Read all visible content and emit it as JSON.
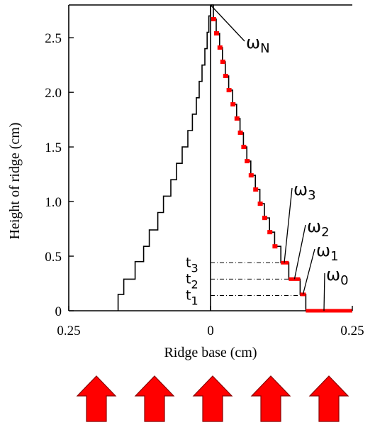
{
  "chart_data": {
    "type": "line",
    "title": "",
    "xlabel": "Ridge base (cm)",
    "ylabel": "Height of ridge (cm)",
    "xlim": [
      -0.25,
      0.25
    ],
    "ylim": [
      0,
      2.8
    ],
    "x_tick_labels": [
      "0.25",
      "0",
      "0.25"
    ],
    "x_tick_values": [
      -0.25,
      0,
      0.25
    ],
    "y_tick_labels": [
      "0",
      "0.5",
      "1.0",
      "1.5",
      "2.0",
      "2.5"
    ],
    "y_tick_values": [
      0,
      0.5,
      1.0,
      1.5,
      2.0,
      2.5
    ],
    "series": [
      {
        "color": "#000000",
        "style": "staircase",
        "points": [
          [
            -0.163,
            0.0
          ],
          [
            -0.163,
            0.15
          ],
          [
            -0.153,
            0.15
          ],
          [
            -0.153,
            0.29
          ],
          [
            -0.133,
            0.29
          ],
          [
            -0.133,
            0.45
          ],
          [
            -0.118,
            0.45
          ],
          [
            -0.118,
            0.59
          ],
          [
            -0.108,
            0.59
          ],
          [
            -0.108,
            0.74
          ],
          [
            -0.093,
            0.74
          ],
          [
            -0.093,
            0.9
          ],
          [
            -0.083,
            0.9
          ],
          [
            -0.083,
            1.05
          ],
          [
            -0.07,
            1.05
          ],
          [
            -0.07,
            1.2
          ],
          [
            -0.06,
            1.2
          ],
          [
            -0.06,
            1.35
          ],
          [
            -0.05,
            1.35
          ],
          [
            -0.05,
            1.5
          ],
          [
            -0.04,
            1.5
          ],
          [
            -0.04,
            1.65
          ],
          [
            -0.032,
            1.65
          ],
          [
            -0.032,
            1.8
          ],
          [
            -0.025,
            1.8
          ],
          [
            -0.025,
            1.95
          ],
          [
            -0.02,
            1.95
          ],
          [
            -0.02,
            2.1
          ],
          [
            -0.015,
            2.1
          ],
          [
            -0.015,
            2.25
          ],
          [
            -0.01,
            2.25
          ],
          [
            -0.01,
            2.4
          ],
          [
            -0.006,
            2.4
          ],
          [
            -0.006,
            2.55
          ],
          [
            -0.003,
            2.55
          ],
          [
            -0.003,
            2.7
          ],
          [
            0.0,
            2.7
          ],
          [
            0.0,
            2.8
          ]
        ]
      },
      {
        "color": "#000000",
        "style": "staircase",
        "points": [
          [
            0.0,
            2.8
          ],
          [
            0.005,
            2.8
          ],
          [
            0.005,
            2.67
          ],
          [
            0.01,
            2.67
          ],
          [
            0.01,
            2.54
          ],
          [
            0.016,
            2.54
          ],
          [
            0.016,
            2.41
          ],
          [
            0.021,
            2.41
          ],
          [
            0.021,
            2.28
          ],
          [
            0.026,
            2.28
          ],
          [
            0.026,
            2.15
          ],
          [
            0.032,
            2.15
          ],
          [
            0.032,
            2.02
          ],
          [
            0.039,
            2.02
          ],
          [
            0.039,
            1.89
          ],
          [
            0.046,
            1.89
          ],
          [
            0.046,
            1.76
          ],
          [
            0.052,
            1.76
          ],
          [
            0.052,
            1.63
          ],
          [
            0.058,
            1.63
          ],
          [
            0.058,
            1.5
          ],
          [
            0.064,
            1.5
          ],
          [
            0.064,
            1.37
          ],
          [
            0.071,
            1.37
          ],
          [
            0.071,
            1.24
          ],
          [
            0.079,
            1.24
          ],
          [
            0.079,
            1.11
          ],
          [
            0.087,
            1.11
          ],
          [
            0.087,
            0.98
          ],
          [
            0.095,
            0.98
          ],
          [
            0.095,
            0.85
          ],
          [
            0.104,
            0.85
          ],
          [
            0.104,
            0.72
          ],
          [
            0.113,
            0.72
          ],
          [
            0.113,
            0.59
          ],
          [
            0.124,
            0.59
          ],
          [
            0.124,
            0.44
          ],
          [
            0.138,
            0.44
          ],
          [
            0.138,
            0.29
          ],
          [
            0.158,
            0.29
          ],
          [
            0.158,
            0.15
          ],
          [
            0.168,
            0.15
          ],
          [
            0.168,
            0.0
          ],
          [
            0.25,
            0.0
          ]
        ]
      }
    ],
    "highlights": {
      "color": "#ff0000",
      "step_marks": [
        [
          0.005,
          2.67
        ],
        [
          0.01,
          2.54
        ],
        [
          0.016,
          2.41
        ],
        [
          0.021,
          2.28
        ],
        [
          0.026,
          2.15
        ],
        [
          0.032,
          2.02
        ],
        [
          0.039,
          1.89
        ],
        [
          0.046,
          1.76
        ],
        [
          0.052,
          1.63
        ],
        [
          0.058,
          1.5
        ],
        [
          0.064,
          1.37
        ],
        [
          0.071,
          1.24
        ],
        [
          0.079,
          1.11
        ],
        [
          0.087,
          0.98
        ],
        [
          0.095,
          0.85
        ],
        [
          0.104,
          0.72
        ],
        [
          0.113,
          0.59
        ]
      ],
      "segments": [
        [
          0.124,
          0.138,
          0.44
        ],
        [
          0.138,
          0.158,
          0.29
        ],
        [
          0.158,
          0.168,
          0.15
        ],
        [
          0.168,
          0.25,
          0.0
        ]
      ]
    },
    "threshold_lines": [
      {
        "label": "t",
        "sub": "1",
        "y": 0.14
      },
      {
        "label": "t",
        "sub": "2",
        "y": 0.29
      },
      {
        "label": "t",
        "sub": "3",
        "y": 0.44
      }
    ],
    "annotations": [
      {
        "label": "ω",
        "sub": "N",
        "target": [
          0.0,
          2.8
        ]
      },
      {
        "label": "ω",
        "sub": "3",
        "target": [
          0.13,
          0.44
        ]
      },
      {
        "label": "ω",
        "sub": "2",
        "target": [
          0.148,
          0.29
        ]
      },
      {
        "label": "ω",
        "sub": "1",
        "target": [
          0.163,
          0.15
        ]
      },
      {
        "label": "ω",
        "sub": "0",
        "target": [
          0.2,
          0.0
        ]
      }
    ],
    "arrows": {
      "count": 5,
      "color": "#ff0000",
      "direction": "up"
    },
    "grid": false,
    "legend": "none"
  }
}
